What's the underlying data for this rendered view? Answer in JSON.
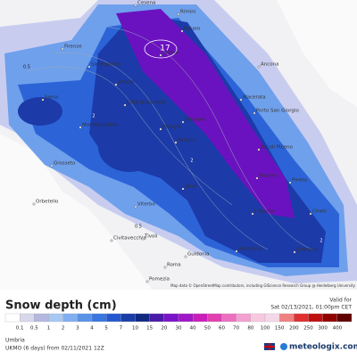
{
  "map": {
    "cities": [
      "Cesena",
      "Rimini",
      "Pesaro",
      "Urbino",
      "Firenze",
      "Sansepolcro",
      "Ancona",
      "Arezzo",
      "Città di Castello",
      "Siena",
      "Fabriano",
      "Macerata",
      "Porto San Giorgio",
      "Montepulciano",
      "Perugia",
      "Foligno",
      "Ascoli Piceno",
      "Grosseto",
      "Teramo",
      "Pineto",
      "Orbetello",
      "Terni",
      "Viterbo",
      "L'Aquila",
      "Chieti",
      "Civitavecchia",
      "Tivoli",
      "Avezzano",
      "Sulmona",
      "Guidonia",
      "Roma",
      "Pomezia"
    ],
    "contour_labels": [
      "17",
      "0.5",
      "2",
      "2",
      "0.5",
      "2"
    ],
    "attribution": "Map data © OpenStreetMap contributors, including GIScience Research Group @ Heidelberg University"
  },
  "legend": {
    "title": "Snow depth (cm)",
    "ticks": [
      "0.1",
      "0.5",
      "1",
      "2",
      "3",
      "4",
      "5",
      "7",
      "10",
      "15",
      "20",
      "30",
      "40",
      "50",
      "60",
      "70",
      "80",
      "100",
      "150",
      "200",
      "250",
      "300",
      "400"
    ]
  },
  "valid": {
    "label": "Valid for",
    "time": "Sat 02/13/2021, 01:00pm CET"
  },
  "footer": {
    "region": "Umbria",
    "model": "UKMO (6 days) from 02/11/2021 12Z",
    "brand": "meteologix.com"
  }
}
